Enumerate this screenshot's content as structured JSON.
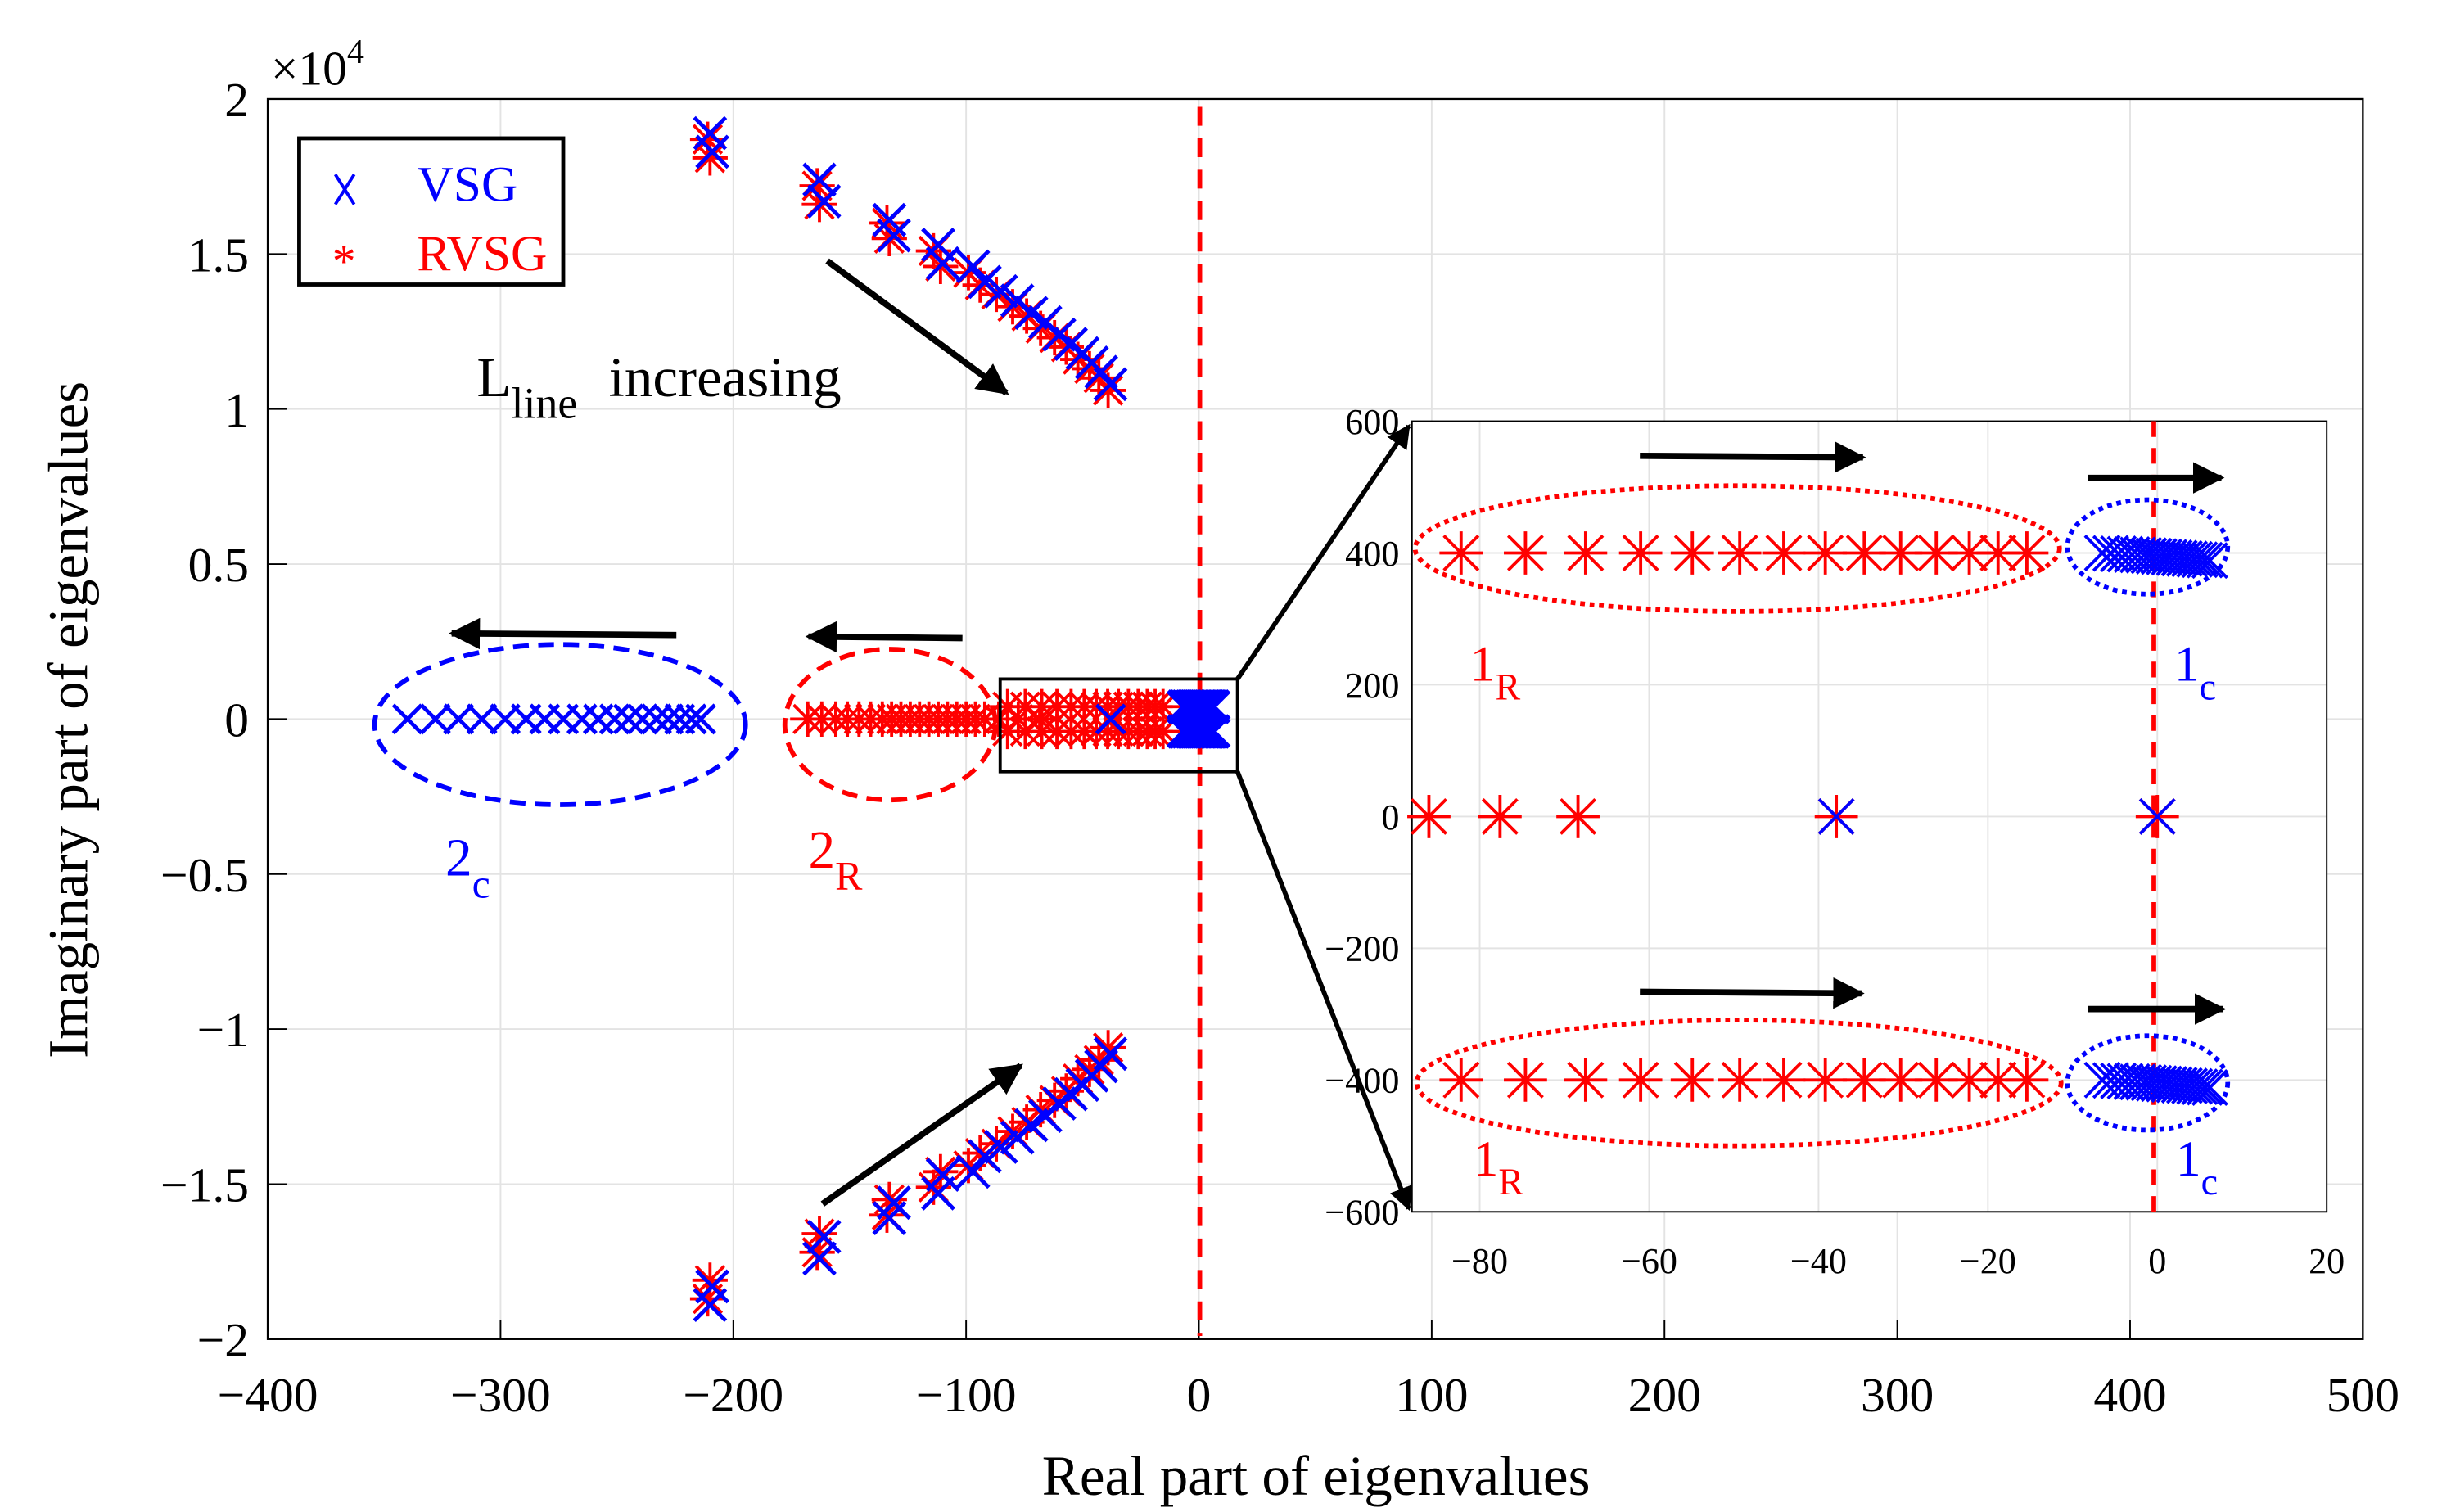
{
  "chart_data": {
    "type": "scatter",
    "title": "",
    "xlabel": "Real part of eigenvalues",
    "ylabel": "Imaginary part of eigenvalues",
    "y_exponent_label": "×10",
    "y_exponent_power": "4",
    "xlim": [
      -400,
      500
    ],
    "ylim": [
      -2,
      2
    ],
    "y_scale": 10000,
    "grid": true,
    "xticks": [
      "−400",
      "−300",
      "−200",
      "−100",
      "0",
      "100",
      "200",
      "300",
      "400",
      "500"
    ],
    "xtick_values": [
      -400,
      -300,
      -200,
      -100,
      0,
      100,
      200,
      300,
      400,
      500
    ],
    "yticks": [
      "2",
      "1.5",
      "1",
      "0.5",
      "0",
      "−0.5",
      "−1",
      "−1.5",
      "−2"
    ],
    "ytick_values": [
      2,
      1.5,
      1,
      0.5,
      0,
      -0.5,
      -1,
      -1.5,
      -2
    ],
    "legend": {
      "placement": "top-left",
      "entries": [
        {
          "name": "VSG",
          "marker": "x",
          "color": "#0000ff"
        },
        {
          "name": "RVSG",
          "marker": "*",
          "color": "#ff0000"
        }
      ]
    },
    "stability_boundary": {
      "x": 0,
      "color": "#ff0000",
      "style": "dashed"
    },
    "series": [
      {
        "name": "VSG",
        "color": "#0000ff",
        "marker": "x",
        "points_complex_branch": [
          [
            -210,
            1.89
          ],
          [
            -209,
            1.83
          ],
          [
            -163,
            1.74
          ],
          [
            -161,
            1.67
          ],
          [
            -133,
            1.61
          ],
          [
            -131,
            1.56
          ],
          [
            -112,
            1.53
          ],
          [
            -110,
            1.47
          ],
          [
            -97,
            1.46
          ],
          [
            -92,
            1.41
          ],
          [
            -85,
            1.38
          ],
          [
            -78,
            1.35
          ],
          [
            -72,
            1.31
          ],
          [
            -66,
            1.28
          ],
          [
            -60,
            1.24
          ],
          [
            -55,
            1.21
          ],
          [
            -50,
            1.18
          ],
          [
            -46,
            1.15
          ],
          [
            -42,
            1.12
          ],
          [
            -38,
            1.08
          ]
        ],
        "points_real_axis": [
          -340,
          -328,
          -318,
          -308,
          -298,
          -289,
          -281,
          -273,
          -265,
          -258,
          -251,
          -245,
          -239,
          -233,
          -228,
          -223,
          -218,
          -214,
          -37.9,
          0
        ]
      },
      {
        "name": "RVSG",
        "color": "#ff0000",
        "marker": "*",
        "points_complex_branch": [
          [
            -211,
            1.87
          ],
          [
            -210,
            1.81
          ],
          [
            -164,
            1.72
          ],
          [
            -163,
            1.66
          ],
          [
            -134,
            1.6
          ],
          [
            -133,
            1.55
          ],
          [
            -114,
            1.51
          ],
          [
            -111,
            1.46
          ],
          [
            -99,
            1.44
          ],
          [
            -94,
            1.4
          ],
          [
            -87,
            1.37
          ],
          [
            -80,
            1.33
          ],
          [
            -74,
            1.3
          ],
          [
            -68,
            1.26
          ],
          [
            -62,
            1.23
          ],
          [
            -57,
            1.2
          ],
          [
            -52,
            1.16
          ],
          [
            -47,
            1.13
          ],
          [
            -43,
            1.1
          ],
          [
            -39,
            1.06
          ]
        ],
        "points_real_axis": [
          -168,
          -162,
          -156,
          -151,
          -146,
          -141,
          -136,
          -132,
          -128,
          -124,
          -120,
          -116,
          -112,
          -108,
          -104,
          -100,
          -96,
          -92,
          -86,
          -77.6,
          -68.4
        ]
      }
    ],
    "inset": {
      "xlim": [
        -88,
        20
      ],
      "ylim": [
        -600,
        600
      ],
      "xticks": [
        "−80",
        "−60",
        "−40",
        "−20",
        "0",
        "20"
      ],
      "xtick_values": [
        -80,
        -60,
        -40,
        -20,
        0,
        20
      ],
      "yticks": [
        "600",
        "400",
        "200",
        "0",
        "−200",
        "−400",
        "−600"
      ],
      "ytick_values": [
        600,
        400,
        200,
        0,
        -200,
        -400,
        -600
      ],
      "zoom_region": {
        "x": [
          -85,
          17
        ],
        "y": [
          -1700,
          1700
        ]
      },
      "rvsg_mode1_real": [
        -82.2,
        -74.6,
        -67.5,
        -61,
        -54.9,
        -49.3,
        -44.1,
        -39.2,
        -34.6,
        -30.3,
        -26.1,
        -22.2,
        -18.8,
        -15.4
      ],
      "rvsg_mode1_imag": 400,
      "vsg_mode1_real": [
        -6.5,
        -5.5,
        -4.6,
        -3.8,
        -3,
        -2.3,
        -1.6,
        -1,
        -0.4,
        0.2,
        0.8,
        1.4,
        2,
        2.6,
        3.2,
        3.8,
        4.4,
        5,
        5.6,
        6.2
      ],
      "vsg_mode1_imag": 400,
      "rvsg_real_axis": [
        -86,
        -77.6,
        -68.4
      ],
      "vsg_real_axis": [
        -37.9,
        0
      ]
    },
    "annotations": {
      "l_main": "L",
      "l_sub": "line",
      "increasing": "increasing",
      "mode_2c": "2",
      "mode_2c_sub": "c",
      "mode_2r": "2",
      "mode_2r_sub": "R",
      "mode_1r": "1",
      "mode_1r_sub": "R",
      "mode_1c": "1",
      "mode_1c_sub": "c"
    }
  }
}
